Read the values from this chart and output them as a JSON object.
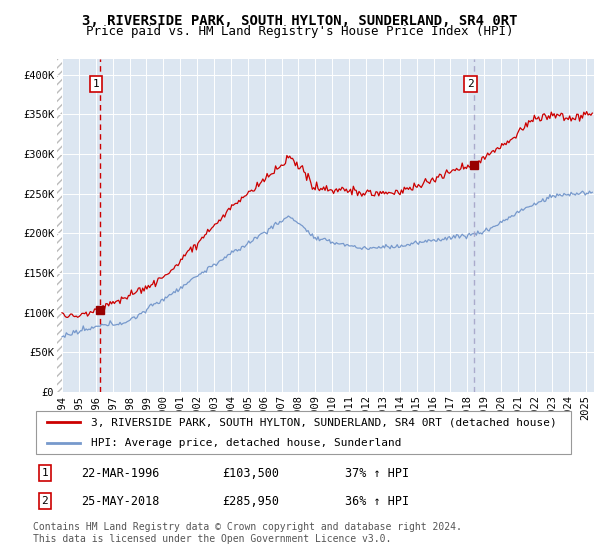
{
  "title": "3, RIVERSIDE PARK, SOUTH HYLTON, SUNDERLAND, SR4 0RT",
  "subtitle": "Price paid vs. HM Land Registry's House Price Index (HPI)",
  "ylim": [
    0,
    420000
  ],
  "yticks": [
    0,
    50000,
    100000,
    150000,
    200000,
    250000,
    300000,
    350000,
    400000
  ],
  "ytick_labels": [
    "£0",
    "£50K",
    "£100K",
    "£150K",
    "£200K",
    "£250K",
    "£300K",
    "£350K",
    "£400K"
  ],
  "xlim_start": 1993.7,
  "xlim_end": 2025.5,
  "xticks": [
    1994,
    1995,
    1996,
    1997,
    1998,
    1999,
    2000,
    2001,
    2002,
    2003,
    2004,
    2005,
    2006,
    2007,
    2008,
    2009,
    2010,
    2011,
    2012,
    2013,
    2014,
    2015,
    2016,
    2017,
    2018,
    2019,
    2020,
    2021,
    2022,
    2023,
    2024,
    2025
  ],
  "sale1_year": 1996.22,
  "sale1_price": 103500,
  "sale2_year": 2018.38,
  "sale2_price": 285950,
  "legend_line1": "3, RIVERSIDE PARK, SOUTH HYLTON, SUNDERLAND, SR4 0RT (detached house)",
  "legend_line2": "HPI: Average price, detached house, Sunderland",
  "annotation1_date": "22-MAR-1996",
  "annotation1_price": "£103,500",
  "annotation1_hpi": "37% ↑ HPI",
  "annotation2_date": "25-MAY-2018",
  "annotation2_price": "£285,950",
  "annotation2_hpi": "36% ↑ HPI",
  "footer": "Contains HM Land Registry data © Crown copyright and database right 2024.\nThis data is licensed under the Open Government Licence v3.0.",
  "plot_bg": "#dce6f1",
  "grid_color": "#ffffff",
  "red_line_color": "#cc0000",
  "blue_line_color": "#7799cc",
  "sale_marker_color": "#990000",
  "dashed1_color": "#cc0000",
  "dashed2_color": "#aaaacc",
  "title_fontsize": 10,
  "subtitle_fontsize": 9,
  "tick_fontsize": 7.5,
  "legend_fontsize": 8,
  "annotation_fontsize": 8.5,
  "footer_fontsize": 7
}
